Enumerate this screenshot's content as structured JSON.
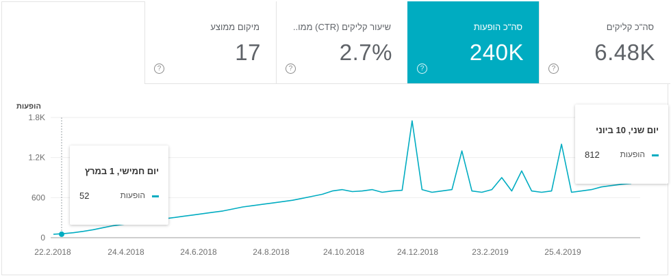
{
  "metrics": [
    {
      "label": "סה\"כ קליקים",
      "value": "6.48K",
      "active": false
    },
    {
      "label": "סה\"כ הופעות",
      "value": "240K",
      "active": true
    },
    {
      "label": "שיעור קליקים (CTR) ממו..",
      "value": "2.7%",
      "active": false
    },
    {
      "label": "מיקום ממוצע",
      "value": "17",
      "active": false
    }
  ],
  "help_glyph": "?",
  "chart_data": {
    "type": "line",
    "ylabel": "הופעות",
    "yticks": [
      "0",
      "600",
      "1.2K",
      "1.8K"
    ],
    "ylim": [
      0,
      1800
    ],
    "xticks": [
      "22.2.2018",
      "24.4.2018",
      "24.6.2018",
      "24.8.2018",
      "24.10.2018",
      "24.12.2018",
      "23.2.2019",
      "25.4.2019"
    ],
    "grid": true,
    "color": "#00acc1",
    "series": [
      {
        "name": "הופעות",
        "values": [
          52,
          60,
          75,
          95,
          120,
          150,
          180,
          200,
          220,
          240,
          260,
          280,
          300,
          320,
          340,
          360,
          380,
          400,
          430,
          460,
          480,
          500,
          520,
          540,
          560,
          590,
          620,
          650,
          700,
          720,
          690,
          700,
          720,
          680,
          700,
          710,
          1750,
          720,
          680,
          700,
          720,
          1300,
          700,
          680,
          720,
          900,
          700,
          1000,
          700,
          680,
          700,
          1400,
          680,
          700,
          720,
          760,
          780,
          800,
          812
        ]
      }
    ]
  },
  "tooltips": [
    {
      "title": "יום חמישי, 1 במרץ",
      "label": "הופעות",
      "value": "52"
    },
    {
      "title": "יום שני, 10 ביוני",
      "label": "הופעות",
      "value": "812"
    }
  ]
}
